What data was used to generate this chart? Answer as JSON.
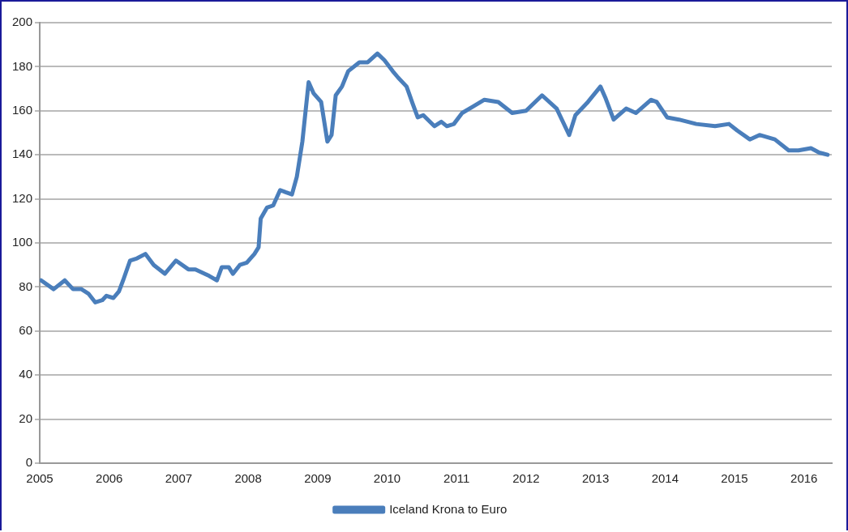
{
  "chart_data": {
    "type": "line",
    "x": [
      2005.02,
      2005.2,
      2005.36,
      2005.48,
      2005.6,
      2005.7,
      2005.8,
      2005.9,
      2005.96,
      2006.06,
      2006.14,
      2006.2,
      2006.3,
      2006.4,
      2006.52,
      2006.64,
      2006.8,
      2006.96,
      2007.14,
      2007.24,
      2007.44,
      2007.55,
      2007.62,
      2007.72,
      2007.78,
      2007.88,
      2007.98,
      2008.09,
      2008.15,
      2008.18,
      2008.27,
      2008.36,
      2008.46,
      2008.54,
      2008.63,
      2008.7,
      2008.78,
      2008.87,
      2008.94,
      2009.05,
      2009.14,
      2009.2,
      2009.26,
      2009.35,
      2009.44,
      2009.6,
      2009.72,
      2009.86,
      2009.96,
      2010.08,
      2010.16,
      2010.28,
      2010.37,
      2010.44,
      2010.52,
      2010.68,
      2010.78,
      2010.86,
      2010.96,
      2011.08,
      2011.24,
      2011.4,
      2011.6,
      2011.8,
      2012.0,
      2012.23,
      2012.44,
      2012.62,
      2012.71,
      2012.89,
      2013.07,
      2013.14,
      2013.26,
      2013.44,
      2013.58,
      2013.8,
      2013.88,
      2014.03,
      2014.2,
      2014.45,
      2014.72,
      2014.92,
      2015.04,
      2015.22,
      2015.36,
      2015.58,
      2015.78,
      2015.92,
      2016.1,
      2016.22,
      2016.34
    ],
    "series": [
      {
        "name": "Iceland Krona to Euro",
        "color": "#4a7ebb",
        "values": [
          83,
          79,
          83,
          79,
          79,
          77,
          73,
          74,
          76,
          75,
          78,
          83,
          92,
          93,
          95,
          90,
          86,
          92,
          88,
          88,
          85,
          83,
          89,
          89,
          86,
          90,
          91,
          95,
          98,
          111,
          116,
          117,
          124,
          123,
          122,
          130,
          146,
          173,
          168,
          164,
          146,
          149,
          167,
          171,
          178,
          182,
          182,
          186,
          183,
          178,
          175,
          171,
          163,
          157,
          158,
          153,
          155,
          153,
          154,
          159,
          162,
          165,
          164,
          159,
          160,
          167,
          161,
          149,
          158,
          164,
          171,
          166,
          156,
          161,
          159,
          165,
          164,
          157,
          156,
          154,
          153,
          154,
          151,
          147,
          149,
          147,
          142,
          142,
          143,
          141,
          140
        ]
      }
    ],
    "xlim": [
      2005,
      2016.4
    ],
    "xticks": [
      2005,
      2006,
      2007,
      2008,
      2009,
      2010,
      2011,
      2012,
      2013,
      2014,
      2015,
      2016
    ],
    "ylim": [
      0,
      200
    ],
    "yticks": [
      0,
      20,
      40,
      60,
      80,
      100,
      120,
      140,
      160,
      180,
      200
    ],
    "grid": "y",
    "legend": "bottom",
    "marker": "none",
    "line_style": "solid"
  }
}
